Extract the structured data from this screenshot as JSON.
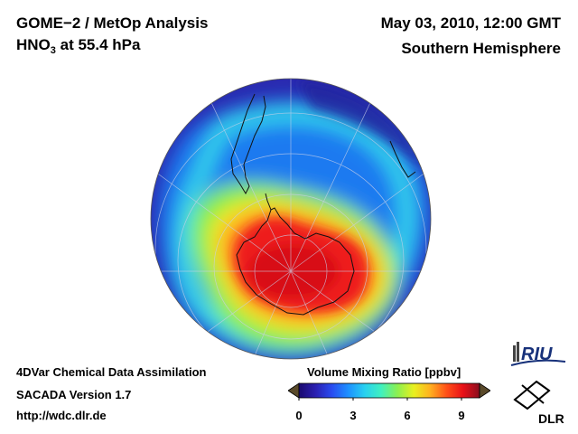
{
  "header": {
    "product": "GOME−2 / MetOp Analysis",
    "species": "HNO",
    "species_sub": "3",
    "level": " at 55.4 hPa",
    "datetime": "May 03, 2010, 12:00 GMT",
    "region": "Southern Hemisphere"
  },
  "footer": {
    "system": "4DVar Chemical Data Assimilation",
    "version": "SACADA Version 1.7",
    "url": "http://wdc.dlr.de"
  },
  "colorbar": {
    "title": "Volume Mixing Ratio [ppbv]",
    "min": 0,
    "max": 10,
    "ticks": [
      "0",
      "3",
      "6",
      "9"
    ],
    "colors": [
      "#1a0a6e",
      "#2b1fb0",
      "#2a4cf0",
      "#1e90ff",
      "#28d0f0",
      "#3ff0c0",
      "#8cf050",
      "#e8f020",
      "#ffb020",
      "#ff5018",
      "#e81018",
      "#8a0e1e"
    ]
  },
  "logos": {
    "riu": "RIU",
    "dlr": "DLR"
  },
  "map": {
    "projection": "orthographic, south pole centered",
    "field_levels": {
      "outer_ring": 1.5,
      "mid_latitudes": 2.5,
      "collar": 5.5,
      "polar_core": 9.5
    }
  }
}
